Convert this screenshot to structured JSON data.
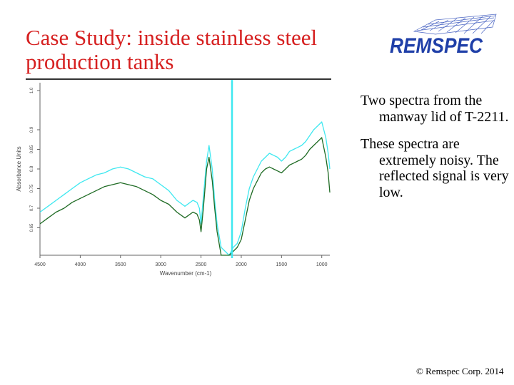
{
  "slide": {
    "title": "Case Study: inside stainless steel production tanks",
    "logo_text": "REMSPEC",
    "bullets": [
      "Two spectra from the manway lid of  T-2211.",
      "These spectra are extremely noisy. The reflected signal is very low."
    ],
    "copyright": "© Remspec Corp. 2014"
  },
  "colors": {
    "title": "#d62020",
    "logo": "#1f3fa8",
    "series_light": "#3fe8f0",
    "series_dark": "#1f6b24"
  },
  "chart_data": {
    "type": "line",
    "xlabel": "Wavenumber (cm-1)",
    "ylabel": "Absorbance Units",
    "x_reversed": true,
    "xlim": [
      4500,
      900
    ],
    "ylim": [
      0.58,
      1.02
    ],
    "x_ticks": [
      4500,
      4000,
      3500,
      3000,
      2500,
      2000,
      1500,
      1000
    ],
    "x_tick_labels": [
      "4500",
      "4000",
      "3500",
      "3000",
      "2500",
      "2000",
      "1500",
      "1000"
    ],
    "y_ticks": [
      0.65,
      0.7,
      0.75,
      0.8,
      0.85,
      0.9,
      1.0
    ],
    "y_tick_labels": [
      "0.65",
      "0.7",
      "0.75",
      "0.8",
      "0.85",
      "0.9",
      "1.0"
    ],
    "series": [
      {
        "color": "#3fe8f0",
        "x": [
          4500,
          4400,
          4300,
          4200,
          4100,
          4000,
          3900,
          3800,
          3700,
          3600,
          3500,
          3400,
          3300,
          3200,
          3100,
          3000,
          2900,
          2800,
          2700,
          2600,
          2550,
          2520,
          2500,
          2470,
          2430,
          2400,
          2360,
          2330,
          2300,
          2250,
          2200,
          2150,
          2100,
          2050,
          2000,
          1950,
          1900,
          1850,
          1800,
          1750,
          1700,
          1650,
          1600,
          1550,
          1500,
          1450,
          1400,
          1350,
          1300,
          1250,
          1200,
          1150,
          1100,
          1050,
          1000,
          950,
          920,
          900
        ],
        "y": [
          0.69,
          0.705,
          0.72,
          0.735,
          0.75,
          0.765,
          0.775,
          0.785,
          0.79,
          0.8,
          0.805,
          0.8,
          0.79,
          0.78,
          0.775,
          0.76,
          0.745,
          0.72,
          0.705,
          0.72,
          0.715,
          0.7,
          0.66,
          0.73,
          0.82,
          0.86,
          0.8,
          0.72,
          0.66,
          0.6,
          0.59,
          0.58,
          0.6,
          0.61,
          0.64,
          0.7,
          0.75,
          0.78,
          0.8,
          0.82,
          0.83,
          0.84,
          0.835,
          0.83,
          0.82,
          0.83,
          0.845,
          0.85,
          0.855,
          0.86,
          0.87,
          0.885,
          0.9,
          0.91,
          0.92,
          0.88,
          0.84,
          0.8
        ]
      },
      {
        "color": "#1f6b24",
        "x": [
          4500,
          4400,
          4300,
          4200,
          4100,
          4000,
          3900,
          3800,
          3700,
          3600,
          3500,
          3400,
          3300,
          3200,
          3100,
          3000,
          2900,
          2800,
          2700,
          2600,
          2550,
          2520,
          2500,
          2470,
          2430,
          2400,
          2360,
          2330,
          2300,
          2250,
          2200,
          2150,
          2100,
          2050,
          2000,
          1950,
          1900,
          1850,
          1800,
          1750,
          1700,
          1650,
          1600,
          1550,
          1500,
          1450,
          1400,
          1350,
          1300,
          1250,
          1200,
          1150,
          1100,
          1050,
          1000,
          950,
          920,
          900
        ],
        "y": [
          0.66,
          0.675,
          0.69,
          0.7,
          0.715,
          0.725,
          0.735,
          0.745,
          0.755,
          0.76,
          0.765,
          0.76,
          0.755,
          0.745,
          0.735,
          0.72,
          0.71,
          0.69,
          0.675,
          0.69,
          0.685,
          0.67,
          0.64,
          0.7,
          0.8,
          0.83,
          0.77,
          0.7,
          0.64,
          0.58,
          0.58,
          0.58,
          0.59,
          0.6,
          0.62,
          0.67,
          0.72,
          0.75,
          0.77,
          0.79,
          0.8,
          0.805,
          0.8,
          0.795,
          0.79,
          0.8,
          0.81,
          0.815,
          0.82,
          0.825,
          0.835,
          0.85,
          0.86,
          0.87,
          0.88,
          0.83,
          0.79,
          0.74
        ]
      }
    ]
  }
}
